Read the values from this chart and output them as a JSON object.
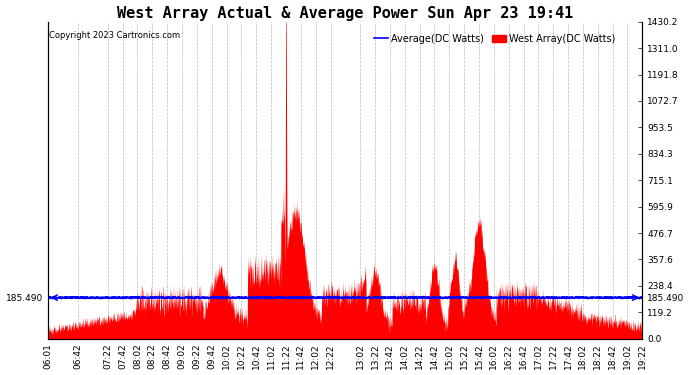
{
  "title": "West Array Actual & Average Power Sun Apr 23 19:41",
  "copyright": "Copyright 2023 Cartronics.com",
  "legend_avg": "Average(DC Watts)",
  "legend_west": "West Array(DC Watts)",
  "avg_color": "blue",
  "west_color": "red",
  "background_color": "#ffffff",
  "ymin": 0.0,
  "ymax": 1430.2,
  "yticks_right": [
    0.0,
    119.2,
    238.4,
    357.6,
    476.7,
    595.9,
    715.1,
    834.3,
    953.5,
    1072.7,
    1191.8,
    1311.0,
    1430.2
  ],
  "marker_value": 185.49,
  "grid_color": "#aaaaaa",
  "title_fontsize": 11,
  "tick_fontsize": 6.5
}
